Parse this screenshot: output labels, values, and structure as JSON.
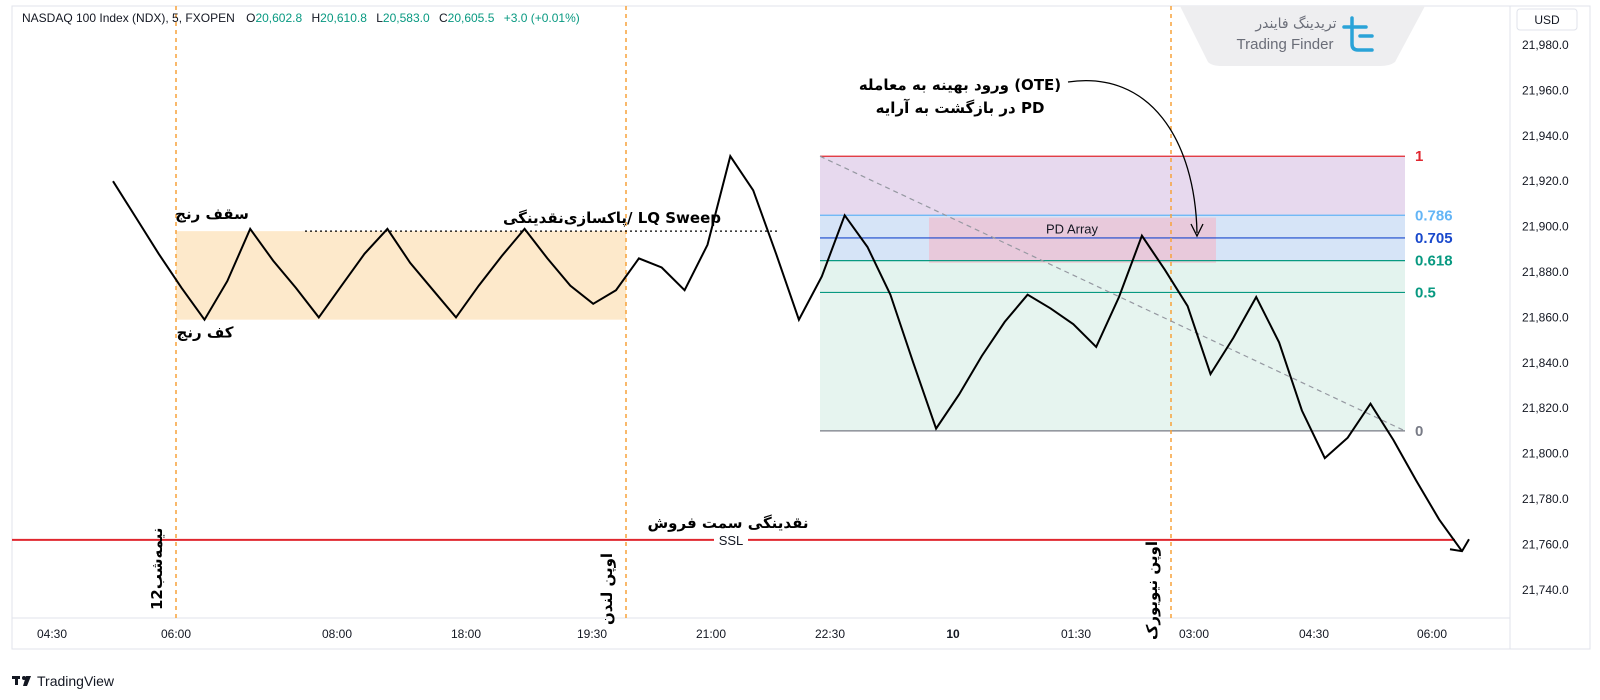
{
  "header": {
    "symbol": "NASDAQ 100 Index (NDX), 5, FXOPEN",
    "o_label": "O",
    "o_value": "20,602.8",
    "h_label": "H",
    "h_value": "20,610.8",
    "l_label": "L",
    "l_value": "20,583.0",
    "c_label": "C",
    "c_value": "20,605.5",
    "change": "+3.0 (+0.01%)"
  },
  "currency": "USD",
  "logo": {
    "fa": "تریدینگ فایندر",
    "en": "Trading Finder"
  },
  "footer": {
    "brand": "TradingView"
  },
  "colors": {
    "up": "#089981",
    "sell_line": "#e0272f",
    "session_line": "#f7a23a",
    "ink": "#000000"
  },
  "chart_data": {
    "type": "line",
    "ylim": [
      21730,
      21990
    ],
    "y_ticks": [
      "21,980.0",
      "21,960.0",
      "21,940.0",
      "21,920.0",
      "21,900.0",
      "21,880.0",
      "21,860.0",
      "21,840.0",
      "21,820.0",
      "21,800.0",
      "21,780.0",
      "21,760.0",
      "21,740.0"
    ],
    "y_tick_values": [
      21980,
      21960,
      21940,
      21920,
      21900,
      21880,
      21860,
      21840,
      21820,
      21800,
      21780,
      21760,
      21740
    ],
    "x_ticks": [
      "04:30",
      "06:00",
      "08:00",
      "18:00",
      "19:30",
      "21:00",
      "22:30",
      "10",
      "01:30",
      "03:00",
      "04:30",
      "06:00"
    ],
    "series": [
      {
        "values": [
          21920,
          21904,
          21888,
          21873,
          21859,
          21876,
          21899,
          21885,
          21873,
          21860,
          21874,
          21888,
          21899,
          21884,
          21872,
          21860,
          21874,
          21887,
          21899,
          21886,
          21874,
          21866,
          21872,
          21886,
          21882,
          21872,
          21892,
          21931,
          21916,
          21888,
          21859,
          21878,
          21905,
          21891,
          21870,
          21840,
          21811,
          21826,
          21843,
          21858,
          21870,
          21864,
          21857,
          21847,
          21869,
          21896,
          21881,
          21865,
          21835,
          21851,
          21869,
          21849,
          21819,
          21798,
          21807,
          21822,
          21806,
          21788,
          21771,
          21757
        ]
      }
    ],
    "range": {
      "top_label": "سقف رنج",
      "bottom_label": "کف رنج",
      "top": 21898,
      "bottom": 21859
    },
    "fib": {
      "high": 21931,
      "low": 21810,
      "levels": [
        {
          "label": "1",
          "value": 21931,
          "color": "#e0272f"
        },
        {
          "label": "0.786",
          "value": 21905,
          "color": "#64b5f6"
        },
        {
          "label": "0.705",
          "value": 21895,
          "color": "#1848cc"
        },
        {
          "label": "0.618",
          "value": 21885,
          "color": "#089981"
        },
        {
          "label": "0.5",
          "value": 21871,
          "color": "#089981"
        },
        {
          "label": "0",
          "value": 21810,
          "color": "#787b86"
        }
      ]
    },
    "pd_array": {
      "label": "PD Array",
      "top": 21904,
      "bottom": 21884
    },
    "sweep_label": "پاکسازی‌نقدینگی/ LQ Sweep",
    "sweep_level": 21898,
    "ote_label_line1": "ورود بهینه به معامله (OTE)",
    "ote_label_line2": "در بازگشت به آرایه PD",
    "ssl": {
      "value": 21762,
      "label": "نقدینگی سمت فروش",
      "tag": "SSL"
    },
    "sessions": [
      {
        "label": "12نیمه‌شب"
      },
      {
        "label": "اوپن لندن"
      },
      {
        "label": "اوپن نیویورک"
      }
    ]
  }
}
